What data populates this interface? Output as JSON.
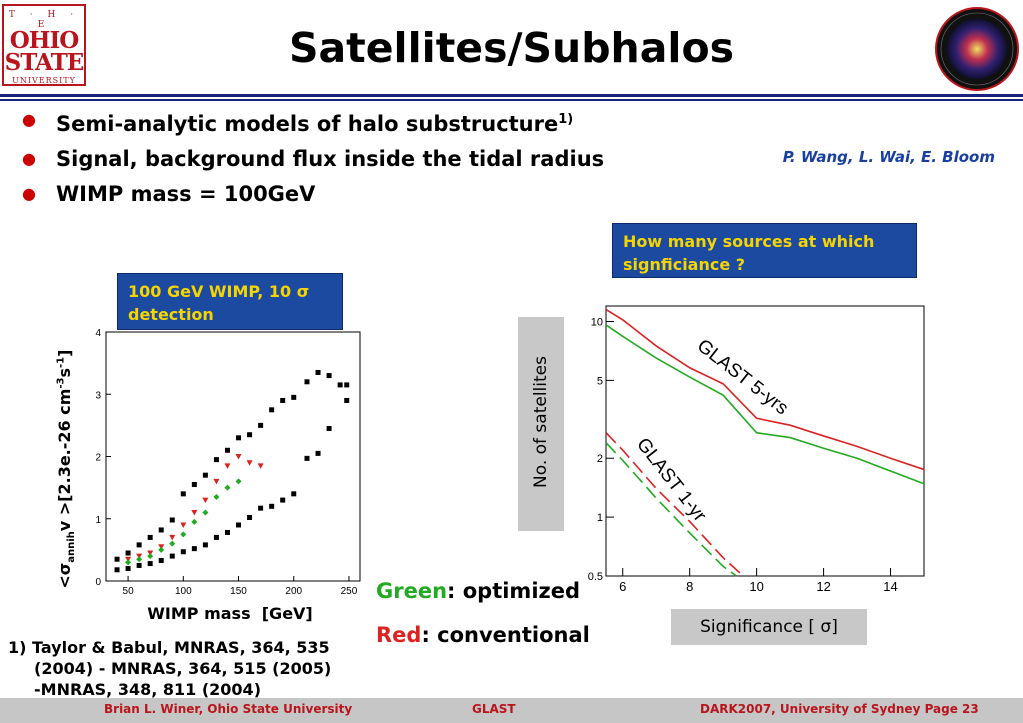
{
  "logo": {
    "line1": "T · H · E",
    "line2a": "OHIO",
    "line2b": "STATE",
    "line3": "UNIVERSITY"
  },
  "title": "Satellites/Subhalos",
  "bullets": [
    {
      "text": "Semi-analytic models of halo substructure",
      "sup": "1)"
    },
    {
      "text": "Signal, background flux inside the tidal radius",
      "sup": ""
    },
    {
      "text": "WIMP mass = 100GeV",
      "sup": ""
    }
  ],
  "authors": "P. Wang, L. Wai, E. Bloom",
  "question_box": "How many sources at which signficiance ?",
  "wimp_box": "100 GeV WIMP, 10 σ detection",
  "left_chart_ylabel": {
    "pre": "<σ",
    "sub": "annih",
    "mid": "v >[2.3e.-26 cm",
    "sup1": "-3",
    "s": "s",
    "sup2": "-1",
    "end": "]"
  },
  "left_chart_xlabel": "WIMP mass  [GeV]",
  "right_chart_ylabel": "No. of satellites",
  "right_chart_xlabel": "Significance [ σ]",
  "legend": {
    "green_word": "Green",
    "green_rest": ": optimized",
    "red_word": "Red",
    "red_rest": ": conventional"
  },
  "footnote": {
    "line1": "1) Taylor & Babul, MNRAS, 364, 535",
    "line2": "(2004) - MNRAS, 364, 515 (2005)",
    "line3": "-MNRAS, 348, 811 (2004)"
  },
  "footer": {
    "left": "Brian L. Winer, Ohio State University",
    "center": "GLAST",
    "right": "DARK2007,  University of Sydney   Page   23"
  },
  "colors": {
    "accent_blue": "#1c4aa0",
    "box_text": "#f5d400",
    "osu_red": "#b8151c",
    "green": "#22aa22",
    "red": "#dd2222"
  },
  "chart_data": [
    {
      "type": "scatter",
      "title": "",
      "xlabel": "WIMP mass  [GeV]",
      "ylabel": "<σannih v >[2.3e.-26 cm-3s-1]",
      "xlim": [
        30,
        260
      ],
      "ylim": [
        0,
        4
      ],
      "xticks": [
        50,
        100,
        150,
        200,
        250
      ],
      "yticks": [
        0,
        1,
        2,
        3,
        4
      ],
      "series": [
        {
          "color": "black",
          "marker": "square",
          "x": [
            40,
            50,
            60,
            70,
            80,
            90,
            100,
            110,
            120,
            130,
            140,
            150,
            160,
            170,
            180,
            190,
            200,
            212,
            222,
            232,
            242,
            248,
            40,
            50,
            60,
            70,
            80,
            90,
            100,
            110,
            120,
            130,
            140,
            150,
            160,
            170,
            180,
            190,
            200,
            212,
            222,
            232,
            248
          ],
          "y": [
            0.35,
            0.45,
            0.58,
            0.7,
            0.82,
            0.98,
            1.4,
            1.55,
            1.7,
            1.95,
            2.1,
            2.3,
            2.35,
            2.5,
            2.75,
            2.9,
            2.95,
            3.2,
            3.35,
            3.3,
            3.15,
            2.9,
            0.18,
            0.2,
            0.25,
            0.28,
            0.33,
            0.4,
            0.47,
            0.52,
            0.58,
            0.7,
            0.78,
            0.9,
            1.02,
            1.17,
            1.2,
            1.3,
            1.4,
            1.97,
            2.05,
            2.45,
            3.15
          ]
        },
        {
          "color": "red",
          "marker": "triangle-down",
          "x": [
            50,
            60,
            70,
            80,
            90,
            100,
            110,
            120,
            130,
            140,
            150,
            160,
            170
          ],
          "y": [
            0.35,
            0.4,
            0.45,
            0.55,
            0.7,
            0.9,
            1.1,
            1.3,
            1.6,
            1.85,
            2.0,
            1.9,
            1.85
          ]
        },
        {
          "color": "green",
          "marker": "diamond",
          "x": [
            50,
            60,
            70,
            80,
            90,
            100,
            110,
            120,
            130,
            140,
            150
          ],
          "y": [
            0.3,
            0.35,
            0.4,
            0.5,
            0.6,
            0.75,
            0.95,
            1.1,
            1.35,
            1.5,
            1.6
          ]
        }
      ]
    },
    {
      "type": "line",
      "title": "",
      "xlabel": "Significance [ σ]",
      "ylabel": "No. of satellites",
      "yscale": "log",
      "xlim": [
        5.5,
        15
      ],
      "ylim": [
        0.5,
        12
      ],
      "xticks": [
        6,
        8,
        10,
        12,
        14
      ],
      "yticks": [
        0.5,
        1,
        2,
        5,
        10
      ],
      "annotations": [
        "GLAST 5-yrs",
        "GLAST 1-yr"
      ],
      "series": [
        {
          "color": "red",
          "style": "solid",
          "x": [
            5.5,
            6,
            7,
            8,
            9,
            10,
            11,
            12,
            13,
            14,
            15
          ],
          "y": [
            11.5,
            10.2,
            7.5,
            5.8,
            4.8,
            3.2,
            2.95,
            2.6,
            2.3,
            2.0,
            1.75
          ]
        },
        {
          "color": "green",
          "style": "solid",
          "x": [
            5.5,
            6,
            7,
            8,
            9,
            10,
            11,
            12,
            13,
            14,
            15
          ],
          "y": [
            9.6,
            8.4,
            6.5,
            5.2,
            4.2,
            2.7,
            2.55,
            2.25,
            2.0,
            1.72,
            1.48
          ]
        },
        {
          "color": "red",
          "style": "dashed",
          "x": [
            5.5,
            6,
            7,
            8,
            9,
            9.6
          ],
          "y": [
            2.7,
            2.2,
            1.4,
            0.95,
            0.62,
            0.5
          ]
        },
        {
          "color": "green",
          "style": "dashed",
          "x": [
            5.5,
            6,
            7,
            8,
            9,
            9.4
          ],
          "y": [
            2.4,
            1.95,
            1.25,
            0.83,
            0.56,
            0.5
          ]
        }
      ]
    }
  ]
}
